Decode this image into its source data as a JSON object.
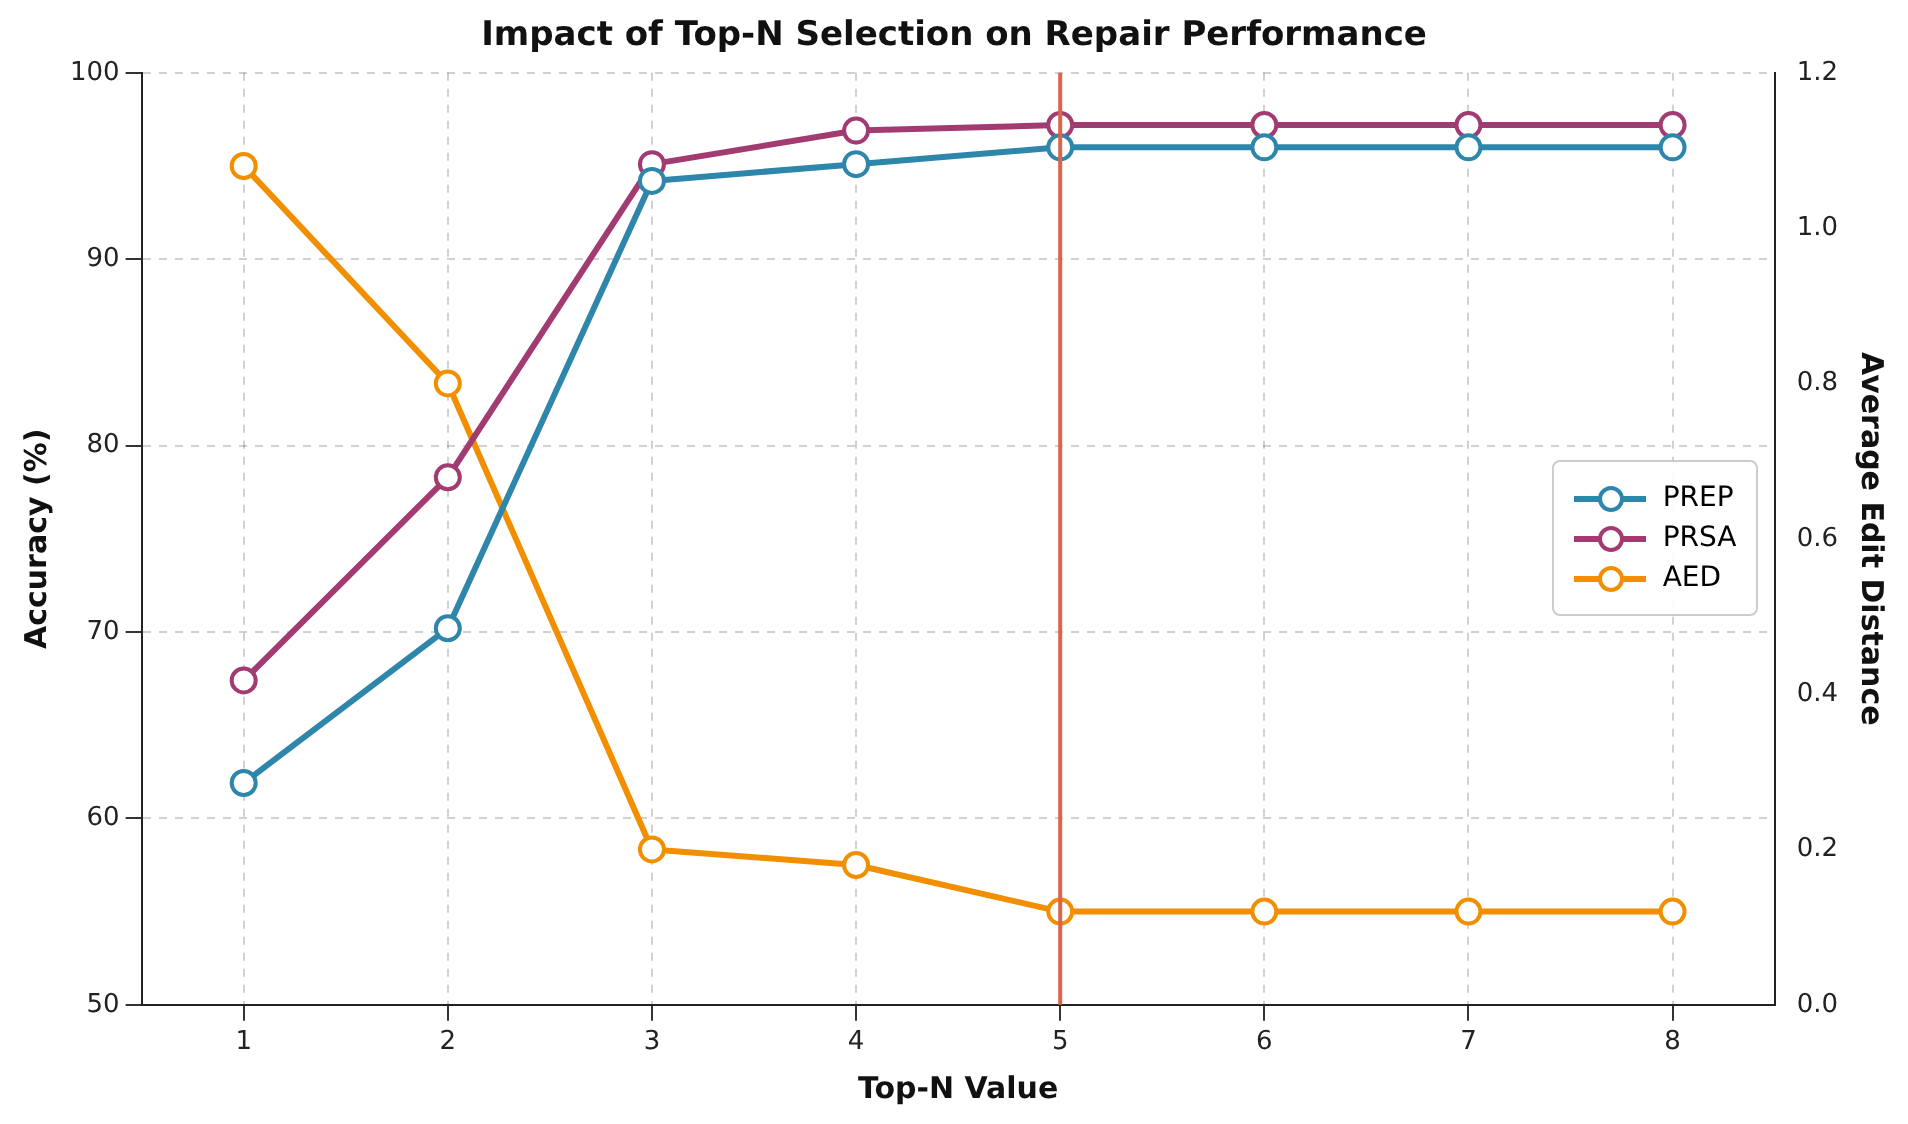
{
  "chart_data": {
    "type": "line",
    "title": "Impact of Top-N Selection on Repair Performance",
    "xlabel": "Top-N Value",
    "ylabel": "Accuracy (%)",
    "y2label": "Average Edit Distance",
    "x": [
      1,
      2,
      3,
      4,
      5,
      6,
      7,
      8
    ],
    "series": [
      {
        "name": "PREP",
        "color": "#2e86ab",
        "values": [
          61.9,
          70.2,
          94.2,
          95.1,
          96.0,
          96.0,
          96.0,
          96.0
        ]
      },
      {
        "name": "PRSA",
        "color": "#a23b72",
        "values": [
          67.4,
          78.3,
          95.1,
          96.9,
          97.2,
          97.2,
          97.2,
          97.2
        ]
      },
      {
        "name": "AED",
        "color": "#f18f01",
        "axis": "y2",
        "values": [
          1.08,
          0.8,
          0.2,
          0.18,
          0.12,
          0.12,
          0.12,
          0.12
        ]
      }
    ],
    "xlim": [
      0.5,
      8.5
    ],
    "xticks": [
      1,
      2,
      3,
      4,
      5,
      6,
      7,
      8
    ],
    "ylim": [
      50,
      100
    ],
    "yticks": [
      50,
      60,
      70,
      80,
      90,
      100
    ],
    "y2lim": [
      0,
      1.2
    ],
    "y2ticks": [
      {
        "value": 0,
        "label": "0.0"
      },
      0.2,
      0.4,
      0.6,
      0.8,
      {
        "value": 1,
        "label": "1.0"
      },
      1.2
    ],
    "ref_lines": [
      {
        "axis": "x",
        "value": 5,
        "color": "#d9664a"
      }
    ],
    "grid": true,
    "legend": "right",
    "marker": "circle",
    "line_style": "solid"
  }
}
